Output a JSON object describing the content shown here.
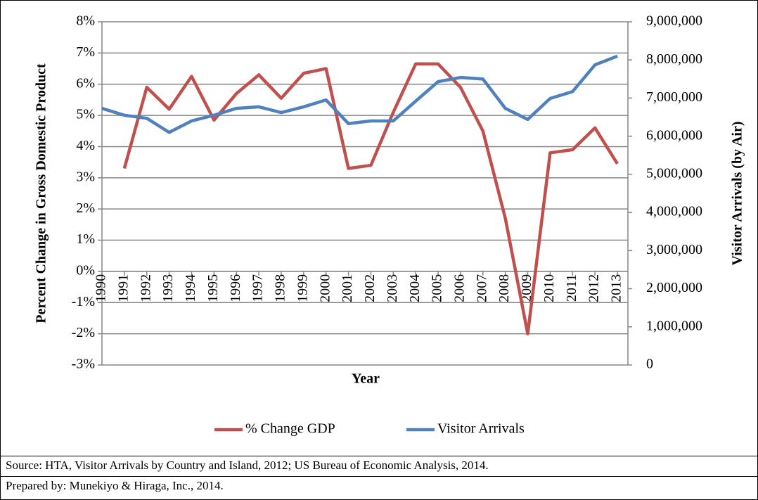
{
  "chart_data": {
    "type": "line",
    "x_label": "Year",
    "y_label": "Percent Change in Gross Domestic Product",
    "y2_label": "Visitor Arrivals (by Air)",
    "categories": [
      "1990",
      "1991",
      "1992",
      "1993",
      "1994",
      "1995",
      "1996",
      "1997",
      "1998",
      "1999",
      "2000",
      "2001",
      "2002",
      "2003",
      "2004",
      "2005",
      "2006",
      "2007",
      "2008",
      "2009",
      "2010",
      "2011",
      "2012",
      "2013"
    ],
    "series": [
      {
        "name": "% Change GDP",
        "color": "#c0504d",
        "values": [
          null,
          3.3,
          5.9,
          5.2,
          6.25,
          4.85,
          5.7,
          6.3,
          5.55,
          6.35,
          6.5,
          3.3,
          3.4,
          5.1,
          6.65,
          6.65,
          5.9,
          4.5,
          1.7,
          -2.0,
          3.8,
          3.9,
          4.6,
          3.45
        ]
      },
      {
        "name": "Visitor Arrivals",
        "color": "#4f81bd",
        "axis": "y2",
        "values": [
          6730000,
          6550000,
          6470000,
          6100000,
          6400000,
          6550000,
          6730000,
          6770000,
          6620000,
          6770000,
          6950000,
          6330000,
          6400000,
          6400000,
          6920000,
          7430000,
          7540000,
          7500000,
          6730000,
          6440000,
          6990000,
          7170000,
          7870000,
          8100000
        ]
      }
    ],
    "ylim": [
      -3,
      8
    ],
    "yticks": [
      {
        "value": -3,
        "label": "-3%"
      },
      {
        "value": -2,
        "label": "-2%"
      },
      {
        "value": -1,
        "label": "-1%"
      },
      {
        "value": 0,
        "label": "0%"
      },
      {
        "value": 1,
        "label": "1%"
      },
      {
        "value": 2,
        "label": "2%"
      },
      {
        "value": 3,
        "label": "3%"
      },
      {
        "value": 4,
        "label": "4%"
      },
      {
        "value": 5,
        "label": "5%"
      },
      {
        "value": 6,
        "label": "6%"
      },
      {
        "value": 7,
        "label": "7%"
      },
      {
        "value": 8,
        "label": "8%"
      }
    ],
    "y2lim": [
      0,
      9000000
    ],
    "y2ticks": [
      0,
      {
        "value": 1000000,
        "label": "1,000,000"
      },
      {
        "value": 2000000,
        "label": "2,000,000"
      },
      {
        "value": 3000000,
        "label": "3,000,000"
      },
      {
        "value": 4000000,
        "label": "4,000,000"
      },
      {
        "value": 5000000,
        "label": "5,000,000"
      },
      {
        "value": 6000000,
        "label": "6,000,000"
      },
      {
        "value": 7000000,
        "label": "7,000,000"
      },
      {
        "value": 8000000,
        "label": "8,000,000"
      },
      {
        "value": 9000000,
        "label": "9,000,000"
      }
    ],
    "grid": true,
    "legend": "bottom",
    "source": "Source: HTA, Visitor Arrivals by Country and Island, 2012; US Bureau of Economic Analysis, 2014.",
    "prepared": "Prepared by: Munekiyo & Hiraga, Inc., 2014."
  }
}
